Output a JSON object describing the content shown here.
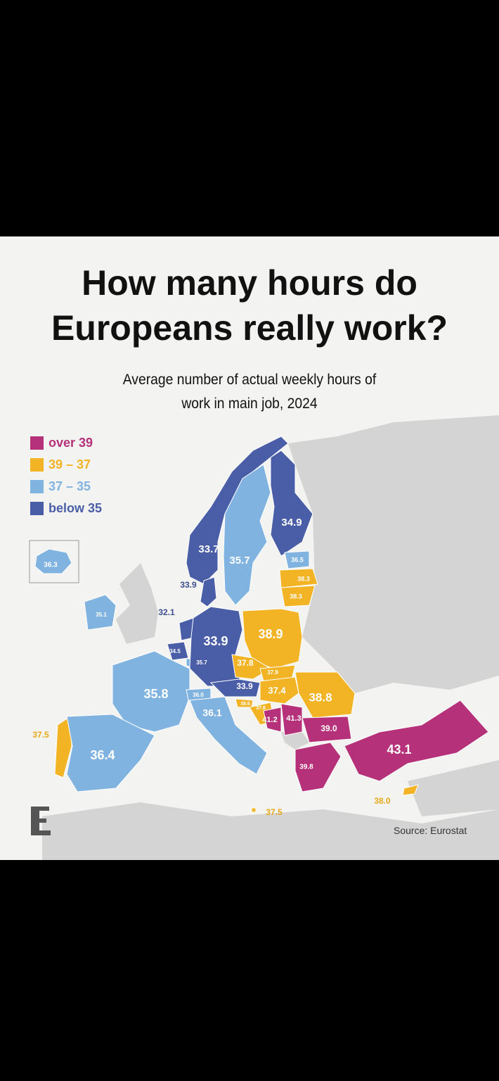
{
  "title": "How many hours do Europeans really work?",
  "subtitle": "Average number of actual weekly hours of work in main job, 2024",
  "source": "Source: Eurostat",
  "chart_data": {
    "type": "map",
    "legend": [
      {
        "label": "over 39",
        "color": "#b5317a",
        "range": [
          39,
          null
        ]
      },
      {
        "label": "39 – 37",
        "color": "#f2b325",
        "range": [
          37,
          39
        ]
      },
      {
        "label": "37 – 35",
        "color": "#80b3e0",
        "range": [
          35,
          37
        ]
      },
      {
        "label": "below 35",
        "color": "#4a5ea8",
        "range": [
          null,
          35
        ]
      }
    ],
    "values": [
      36.3,
      33.7,
      35.7,
      34.9,
      36.5,
      38.3,
      38.3,
      33.9,
      35.1,
      32.1,
      34.5,
      35.7,
      33.9,
      38.9,
      37.8,
      37.9,
      33.9,
      37.4,
      38.8,
      35.8,
      36.0,
      36.1,
      38.6,
      37.8,
      41.2,
      41.3,
      39.0,
      39.8,
      43.1,
      38.0,
      37.5,
      36.4,
      37.5
    ],
    "value_labels": [
      "36.3",
      "33.7",
      "35.7",
      "34.9",
      "36.5",
      "38.3",
      "38.3",
      "33.9",
      "35.1",
      "32.1",
      "34.5",
      "35.7",
      "33.9",
      "38.9",
      "37.8",
      "37.9",
      "33.9",
      "37.4",
      "38.8",
      "35.8",
      "36.0",
      "36.1",
      "38.6",
      "37.8",
      "41.2",
      "41.3",
      "39.0",
      "39.8",
      "43.1",
      "38.0",
      "37.5",
      "36.4",
      "37.5"
    ]
  }
}
